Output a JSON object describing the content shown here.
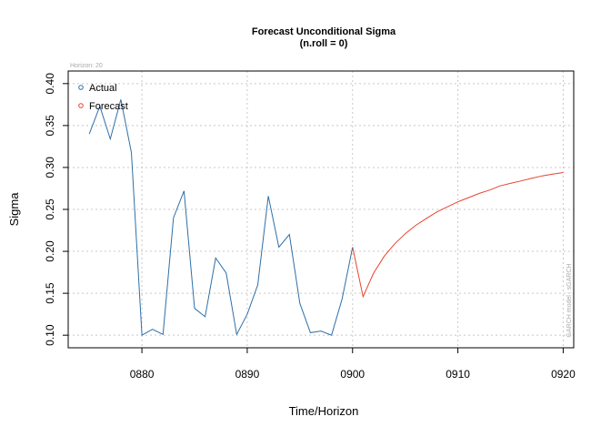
{
  "chart_data": {
    "type": "line",
    "title": "Forecast Unconditional Sigma",
    "subtitle": "(n.roll = 0)",
    "xlabel": "Time/Horizon",
    "ylabel": "Sigma",
    "horizon_note": "Horizon: 20",
    "model_note": "GARCH model : sGARCH",
    "xlim": [
      873,
      921
    ],
    "ylim": [
      0.085,
      0.415
    ],
    "x_ticks": [
      880,
      890,
      900,
      910,
      920
    ],
    "x_tick_labels": [
      "0880",
      "0890",
      "0900",
      "0910",
      "0920"
    ],
    "y_ticks": [
      0.1,
      0.15,
      0.2,
      0.25,
      0.3,
      0.35,
      0.4
    ],
    "y_tick_labels": [
      "0.10",
      "0.15",
      "0.20",
      "0.25",
      "0.30",
      "0.35",
      "0.40"
    ],
    "grid": true,
    "legend_position": "top-left",
    "series": [
      {
        "name": "Actual",
        "color": "#2e6fa7",
        "x": [
          875,
          876,
          877,
          878,
          879,
          880,
          881,
          882,
          883,
          884,
          885,
          886,
          887,
          888,
          889,
          890,
          891,
          892,
          893,
          894,
          895,
          896,
          897,
          898,
          899,
          900
        ],
        "values": [
          0.34,
          0.373,
          0.334,
          0.381,
          0.318,
          0.1,
          0.107,
          0.101,
          0.24,
          0.272,
          0.132,
          0.122,
          0.192,
          0.174,
          0.101,
          0.125,
          0.16,
          0.266,
          0.205,
          0.22,
          0.138,
          0.103,
          0.105,
          0.1,
          0.143,
          0.205
        ]
      },
      {
        "name": "Forecast",
        "color": "#e8432e",
        "x": [
          900,
          901,
          902,
          903,
          904,
          905,
          906,
          907,
          908,
          909,
          910,
          911,
          912,
          913,
          914,
          915,
          916,
          917,
          918,
          919,
          920
        ],
        "values": [
          0.205,
          0.146,
          0.174,
          0.194,
          0.209,
          0.221,
          0.231,
          0.239,
          0.247,
          0.253,
          0.259,
          0.264,
          0.269,
          0.273,
          0.278,
          0.281,
          0.284,
          0.287,
          0.29,
          0.292,
          0.294
        ]
      }
    ]
  }
}
